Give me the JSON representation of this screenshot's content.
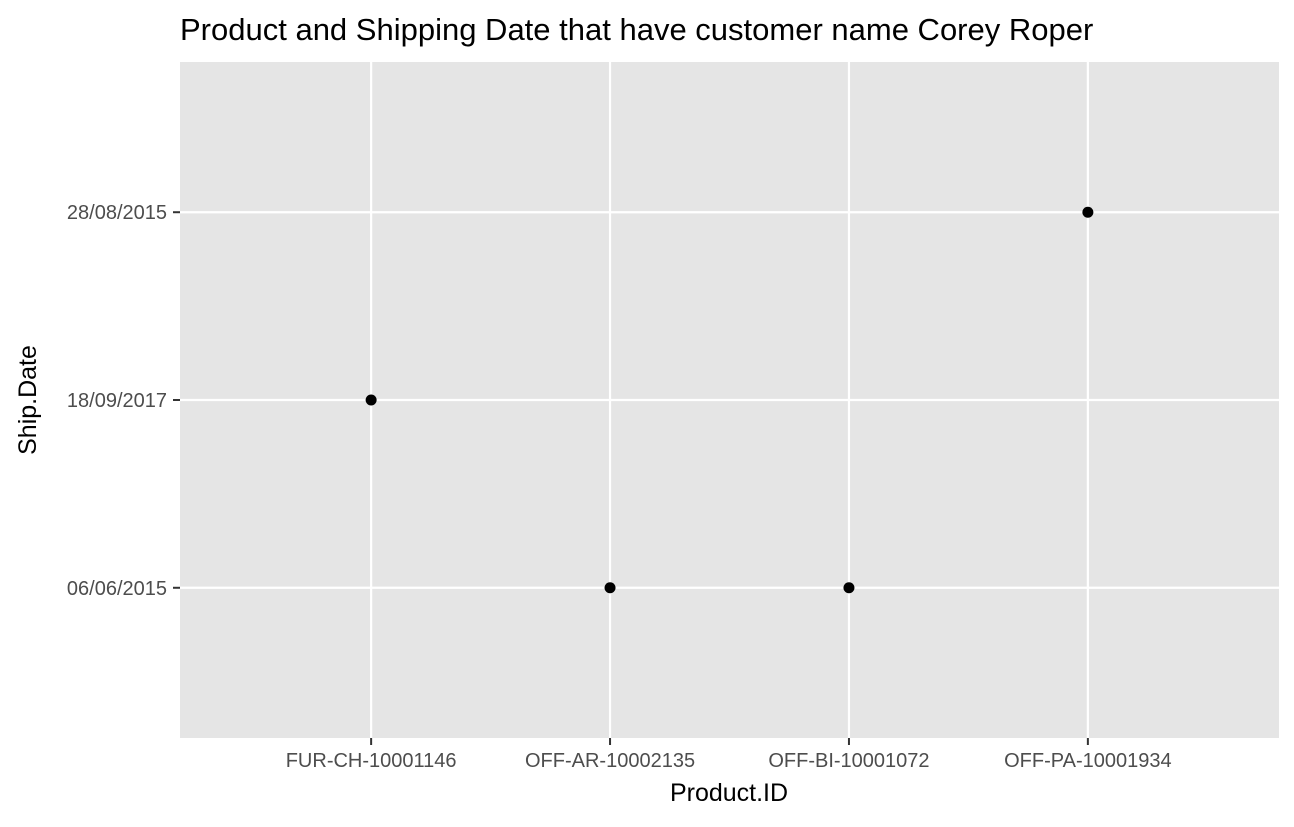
{
  "chart_data": {
    "type": "scatter",
    "title": "Product and Shipping Date that have customer name Corey Roper",
    "xlabel": "Product.ID",
    "ylabel": "Ship.Date",
    "x_categories": [
      "FUR-CH-10001146",
      "OFF-AR-10002135",
      "OFF-BI-10001072",
      "OFF-PA-10001934"
    ],
    "y_categories": [
      "06/06/2015",
      "18/09/2017",
      "28/08/2015"
    ],
    "points": [
      {
        "x": "FUR-CH-10001146",
        "y": "18/09/2017"
      },
      {
        "x": "OFF-AR-10002135",
        "y": "06/06/2015"
      },
      {
        "x": "OFF-BI-10001072",
        "y": "06/06/2015"
      },
      {
        "x": "OFF-PA-10001934",
        "y": "28/08/2015"
      }
    ],
    "grid": true,
    "legend": "none",
    "colors": {
      "panel": "#e5e5e5",
      "grid": "#ffffff",
      "point": "#000000",
      "axis_text": "#4d4d4d",
      "title_text": "#000000"
    }
  }
}
